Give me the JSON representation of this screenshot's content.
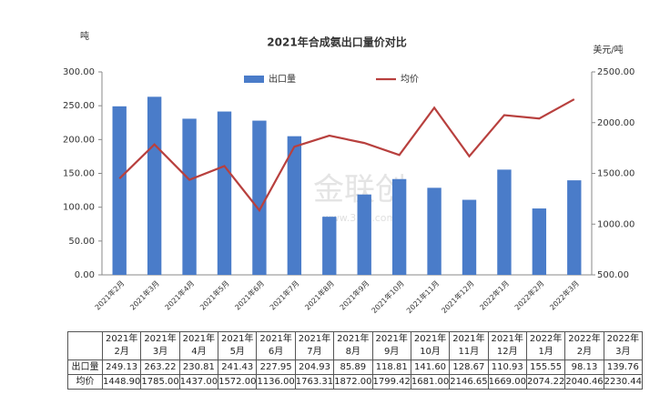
{
  "chart_data": {
    "type": "bar-line",
    "title": "2021年合成氨出口量价对比",
    "y_label": "吨",
    "y2_label": "美元/吨",
    "watermark": [
      "金联创",
      "www.315i.com"
    ],
    "categories": [
      "2021年2月",
      "2021年3月",
      "2021年4月",
      "2021年5月",
      "2021年6月",
      "2021年7月",
      "2021年8月",
      "2021年9月",
      "2021年10月",
      "2021年11月",
      "2021年12月",
      "2022年1月",
      "2022年2月",
      "2022年3月"
    ],
    "series": [
      {
        "name": "出口量",
        "type": "bar",
        "color": "#4a7cc9",
        "values": [
          249.13,
          263.22,
          230.81,
          241.43,
          227.95,
          204.93,
          85.89,
          118.81,
          141.6,
          128.67,
          110.93,
          155.55,
          98.13,
          139.76
        ],
        "value_labels": [
          "249.13",
          "263.22",
          "230.81",
          "241.43",
          "227.95",
          "204.93",
          "85.89",
          "118.81",
          "141.60",
          "128.67",
          "110.93",
          "155.55",
          "98.13",
          "139.76"
        ]
      },
      {
        "name": "均价",
        "type": "line",
        "axis": "y2",
        "color": "#b8403e",
        "values": [
          1448.9,
          1785.0,
          1437.0,
          1572.0,
          1136.0,
          1763.31,
          1872.0,
          1799.42,
          1681.0,
          2146.65,
          1669.0,
          2074.22,
          2040.46,
          2230.44
        ],
        "value_labels": [
          "1448.90",
          "1785.00",
          "1437.00",
          "1572.00",
          "1136.00",
          "1763.31",
          "1872.00",
          "1799.42",
          "1681.00",
          "2146.65",
          "1669.00",
          "2074.22",
          "2040.46",
          "2230.44"
        ]
      }
    ],
    "ylim": [
      0,
      300
    ],
    "yticks": [
      {
        "value": 0,
        "label": "0.00"
      },
      {
        "value": 50,
        "label": "50.00"
      },
      {
        "value": 100,
        "label": "100.00"
      },
      {
        "value": 150,
        "label": "150.00"
      },
      {
        "value": 200,
        "label": "200.00"
      },
      {
        "value": 250,
        "label": "250.00"
      },
      {
        "value": 300,
        "label": "300.00"
      }
    ],
    "y2lim": [
      500,
      2500
    ],
    "y2ticks": [
      {
        "value": 500,
        "label": "500.00"
      },
      {
        "value": 1000,
        "label": "1000.00"
      },
      {
        "value": 1500,
        "label": "1500.00"
      },
      {
        "value": 2000,
        "label": "2000.00"
      },
      {
        "value": 2500,
        "label": "2500.00"
      }
    ],
    "grid": false,
    "legend": "top"
  }
}
